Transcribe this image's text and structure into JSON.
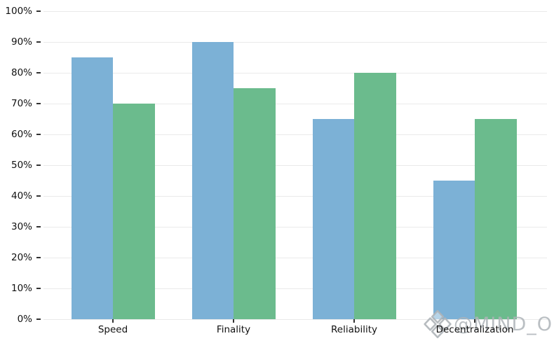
{
  "watermark": {
    "icon": "gem-icon",
    "text": "@MIND_O",
    "color": "#aeb4b8"
  },
  "chart_data": {
    "type": "bar",
    "title": "",
    "xlabel": "",
    "ylabel": "",
    "categories": [
      "Speed",
      "Finality",
      "Reliability",
      "Decentralization"
    ],
    "series": [
      {
        "name": "blue",
        "color": "#7cb1d6",
        "values": [
          85,
          90,
          65,
          45
        ]
      },
      {
        "name": "green",
        "color": "#6bbb8d",
        "values": [
          70,
          75,
          80,
          65
        ]
      }
    ],
    "ylim": [
      0,
      100
    ],
    "y_tick_step": 10,
    "y_tick_labels": [
      "0%",
      "10%",
      "20%",
      "30%",
      "40%",
      "50%",
      "60%",
      "70%",
      "80%",
      "90%",
      "100%"
    ],
    "grid": true,
    "legend_position": "none"
  }
}
